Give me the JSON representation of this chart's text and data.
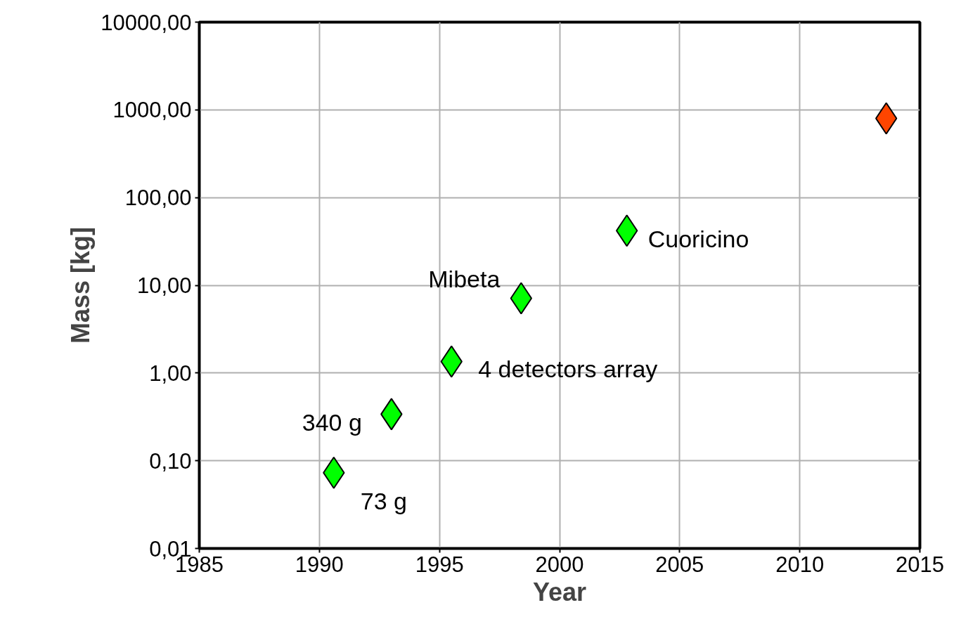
{
  "chart_data": {
    "type": "scatter",
    "xlabel": "Year",
    "ylabel": "Mass [kg]",
    "log": "y",
    "grid": true,
    "marker": "diamond",
    "xlim": [
      1985,
      2015
    ],
    "xticks": [
      1985,
      1990,
      1995,
      2000,
      2005,
      2010,
      2015
    ],
    "ylim": [
      0.01,
      10000
    ],
    "yticks": [
      {
        "value": 0.01,
        "label": "0,01"
      },
      {
        "value": 0.1,
        "label": "0,10"
      },
      {
        "value": 1,
        "label": "1,00"
      },
      {
        "value": 10,
        "label": "10,00"
      },
      {
        "value": 100,
        "label": "100,00"
      },
      {
        "value": 1000,
        "label": "1000,00"
      },
      {
        "value": 10000,
        "label": "10000,00"
      }
    ],
    "series": [
      {
        "color": "#00ff00",
        "x": [
          1990.6,
          1993.0,
          1995.5,
          1998.4,
          2002.8
        ],
        "values": [
          0.073,
          0.34,
          1.35,
          7.1,
          42
        ]
      },
      {
        "color": "#ff4500",
        "x": [
          2013.6
        ],
        "values": [
          800
        ]
      }
    ],
    "annotations": [
      {
        "text": "73 g",
        "x": 1990.6,
        "y": 0.073
      },
      {
        "text": "340 g",
        "x": 1993.0,
        "y": 0.34
      },
      {
        "text": "4 detectors array",
        "x": 1995.5,
        "y": 1.35
      },
      {
        "text": "Mibeta",
        "x": 1998.4,
        "y": 7.1
      },
      {
        "text": "Cuoricino",
        "x": 2002.8,
        "y": 42
      }
    ]
  }
}
